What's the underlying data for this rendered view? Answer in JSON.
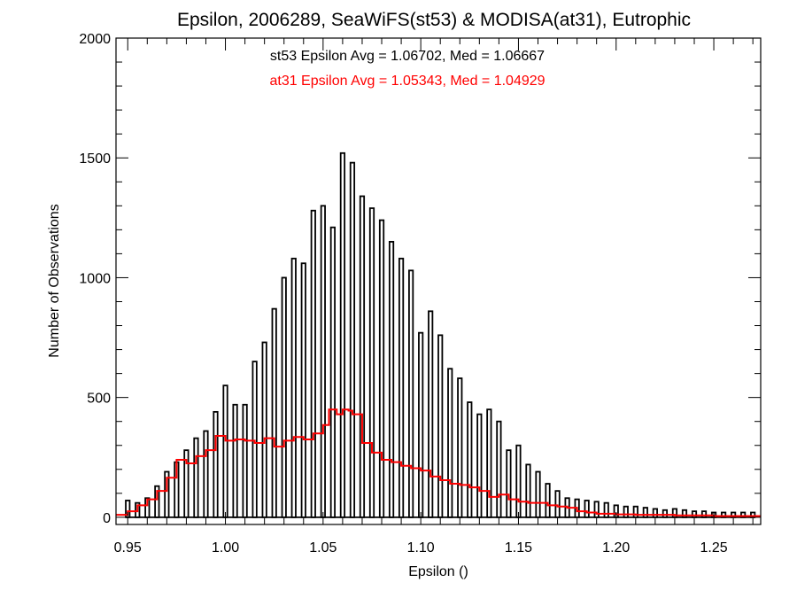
{
  "chart_data": {
    "type": "histogram",
    "title": "Epsilon, 2006289, SeaWiFS(st53) & MODISA(at31), Eutrophic",
    "xlabel": "Epsilon ()",
    "ylabel": "Number of Observations",
    "xlim": [
      0.944,
      1.274
    ],
    "ylim": [
      -30,
      2000
    ],
    "x_ticks": [
      0.95,
      1.0,
      1.05,
      1.1,
      1.15,
      1.2,
      1.25
    ],
    "x_tick_labels": [
      "0.95",
      "1.00",
      "1.05",
      "1.10",
      "1.15",
      "1.20",
      "1.25"
    ],
    "y_ticks": [
      0,
      500,
      1000,
      1500,
      2000
    ],
    "y_tick_labels": [
      "0",
      "500",
      "1000",
      "1500",
      "2000"
    ],
    "annotations": [
      {
        "text": "st53 Epsilon Avg = 1.06702, Med = 1.06667",
        "color": "#000000"
      },
      {
        "text": "at31 Epsilon Avg = 1.05343, Med = 1.04929",
        "color": "#ff0000"
      }
    ],
    "bin_width": 0.002,
    "series": [
      {
        "name": "st53",
        "color": "#000000",
        "bar_width": 0.002,
        "x": [
          0.95,
          0.955,
          0.96,
          0.965,
          0.97,
          0.975,
          0.98,
          0.985,
          0.99,
          0.995,
          1.0,
          1.005,
          1.01,
          1.015,
          1.02,
          1.025,
          1.03,
          1.035,
          1.04,
          1.045,
          1.05,
          1.055,
          1.06,
          1.065,
          1.07,
          1.075,
          1.08,
          1.085,
          1.09,
          1.095,
          1.1,
          1.105,
          1.11,
          1.115,
          1.12,
          1.125,
          1.13,
          1.135,
          1.14,
          1.145,
          1.15,
          1.155,
          1.16,
          1.165,
          1.17,
          1.175,
          1.18,
          1.185,
          1.19,
          1.195,
          1.2,
          1.205,
          1.21,
          1.215,
          1.22,
          1.225,
          1.23,
          1.235,
          1.24,
          1.245,
          1.25,
          1.255,
          1.26,
          1.265,
          1.27
        ],
        "y": [
          70,
          60,
          80,
          130,
          190,
          230,
          280,
          330,
          360,
          440,
          550,
          470,
          470,
          650,
          730,
          870,
          1000,
          1080,
          1060,
          1280,
          1300,
          1210,
          1520,
          1480,
          1340,
          1290,
          1240,
          1150,
          1080,
          1030,
          770,
          860,
          760,
          620,
          580,
          480,
          430,
          450,
          400,
          280,
          300,
          220,
          190,
          140,
          110,
          80,
          75,
          70,
          65,
          60,
          50,
          45,
          45,
          40,
          35,
          30,
          35,
          30,
          25,
          25,
          20,
          20,
          20,
          20,
          20
        ]
      },
      {
        "name": "at31",
        "color": "#ff0000",
        "x": [
          0.944,
          0.95,
          0.955,
          0.96,
          0.965,
          0.97,
          0.975,
          0.98,
          0.985,
          0.99,
          0.995,
          1.0,
          1.005,
          1.01,
          1.015,
          1.02,
          1.025,
          1.03,
          1.035,
          1.04,
          1.045,
          1.05,
          1.053,
          1.057,
          1.06,
          1.063,
          1.065,
          1.07,
          1.075,
          1.08,
          1.085,
          1.09,
          1.095,
          1.1,
          1.105,
          1.11,
          1.115,
          1.12,
          1.125,
          1.13,
          1.135,
          1.14,
          1.145,
          1.15,
          1.155,
          1.16,
          1.165,
          1.17,
          1.175,
          1.18,
          1.185,
          1.19,
          1.195,
          1.2,
          1.205,
          1.21,
          1.22,
          1.23,
          1.24,
          1.25,
          1.26,
          1.274
        ],
        "y": [
          10,
          25,
          50,
          75,
          110,
          165,
          240,
          225,
          255,
          280,
          340,
          320,
          325,
          320,
          310,
          330,
          295,
          320,
          335,
          325,
          350,
          385,
          450,
          430,
          450,
          445,
          430,
          310,
          270,
          240,
          230,
          215,
          205,
          195,
          170,
          155,
          140,
          135,
          125,
          110,
          85,
          95,
          75,
          65,
          60,
          60,
          50,
          45,
          40,
          25,
          20,
          15,
          15,
          12,
          12,
          10,
          10,
          8,
          8,
          5,
          5,
          5
        ]
      }
    ]
  }
}
